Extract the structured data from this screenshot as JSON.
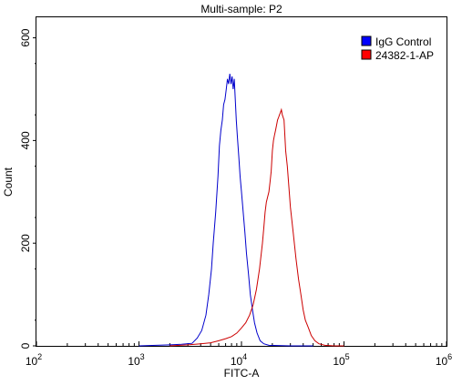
{
  "chart_data": {
    "type": "line",
    "title": "Multi-sample: P2",
    "xlabel": "FITC-A",
    "ylabel": "Count",
    "xscale": "log",
    "xlim": [
      100,
      1000000
    ],
    "ylim": [
      0,
      640
    ],
    "x_ticks": [
      {
        "value": 100,
        "base": "10",
        "exp": "2"
      },
      {
        "value": 1000,
        "base": "10",
        "exp": "3"
      },
      {
        "value": 10000,
        "base": "10",
        "exp": "4"
      },
      {
        "value": 100000,
        "base": "10",
        "exp": "5"
      },
      {
        "value": 1000000,
        "base": "10",
        "exp": "6"
      }
    ],
    "y_ticks": [
      {
        "value": 0,
        "label": "0"
      },
      {
        "value": 200,
        "label": "200"
      },
      {
        "value": 400,
        "label": "400"
      },
      {
        "value": 600,
        "label": "600"
      }
    ],
    "grid": false,
    "legend_position": "top-right",
    "series": [
      {
        "name": "IgG Control",
        "color": "#0000cc",
        "legend_color": "#0000ff",
        "points": [
          [
            1000,
            0
          ],
          [
            2000,
            2
          ],
          [
            2600,
            3
          ],
          [
            3300,
            5
          ],
          [
            3700,
            15
          ],
          [
            4100,
            30
          ],
          [
            4500,
            60
          ],
          [
            4800,
            100
          ],
          [
            5100,
            150
          ],
          [
            5300,
            200
          ],
          [
            5600,
            260
          ],
          [
            5900,
            330
          ],
          [
            6100,
            390
          ],
          [
            6300,
            420
          ],
          [
            6500,
            440
          ],
          [
            6700,
            470
          ],
          [
            6900,
            480
          ],
          [
            7100,
            500
          ],
          [
            7300,
            520
          ],
          [
            7500,
            510
          ],
          [
            7700,
            530
          ],
          [
            7900,
            510
          ],
          [
            8100,
            525
          ],
          [
            8300,
            500
          ],
          [
            8500,
            520
          ],
          [
            8700,
            480
          ],
          [
            8900,
            440
          ],
          [
            9100,
            410
          ],
          [
            9400,
            370
          ],
          [
            9700,
            330
          ],
          [
            10000,
            300
          ],
          [
            10400,
            260
          ],
          [
            10800,
            220
          ],
          [
            11200,
            180
          ],
          [
            11700,
            140
          ],
          [
            12200,
            100
          ],
          [
            12800,
            70
          ],
          [
            13400,
            45
          ],
          [
            14200,
            25
          ],
          [
            15200,
            10
          ],
          [
            16500,
            4
          ],
          [
            18500,
            1
          ],
          [
            30000,
            0
          ],
          [
            50000,
            0
          ]
        ]
      },
      {
        "name": "24382-1-AP",
        "color": "#cc0000",
        "legend_color": "#ff0000",
        "points": [
          [
            2000,
            0
          ],
          [
            3000,
            2
          ],
          [
            4000,
            4
          ],
          [
            5000,
            6
          ],
          [
            6000,
            10
          ],
          [
            7000,
            14
          ],
          [
            8000,
            18
          ],
          [
            9000,
            25
          ],
          [
            10000,
            35
          ],
          [
            11000,
            45
          ],
          [
            12000,
            60
          ],
          [
            13000,
            80
          ],
          [
            14000,
            110
          ],
          [
            15000,
            150
          ],
          [
            16000,
            200
          ],
          [
            16500,
            230
          ],
          [
            17000,
            260
          ],
          [
            17500,
            280
          ],
          [
            18000,
            290
          ],
          [
            18500,
            300
          ],
          [
            19000,
            320
          ],
          [
            19500,
            340
          ],
          [
            20000,
            380
          ],
          [
            20500,
            400
          ],
          [
            21000,
            410
          ],
          [
            21500,
            420
          ],
          [
            22000,
            430
          ],
          [
            22500,
            440
          ],
          [
            23000,
            445
          ],
          [
            23500,
            450
          ],
          [
            24000,
            455
          ],
          [
            24500,
            460
          ],
          [
            25000,
            450
          ],
          [
            26000,
            440
          ],
          [
            27000,
            380
          ],
          [
            28000,
            350
          ],
          [
            29000,
            310
          ],
          [
            30000,
            270
          ],
          [
            32000,
            220
          ],
          [
            34000,
            170
          ],
          [
            36000,
            130
          ],
          [
            38000,
            100
          ],
          [
            40000,
            70
          ],
          [
            42000,
            50
          ],
          [
            45000,
            35
          ],
          [
            48000,
            20
          ],
          [
            52000,
            10
          ],
          [
            57000,
            4
          ],
          [
            65000,
            1
          ],
          [
            80000,
            0
          ],
          [
            100000,
            0
          ]
        ]
      }
    ]
  }
}
